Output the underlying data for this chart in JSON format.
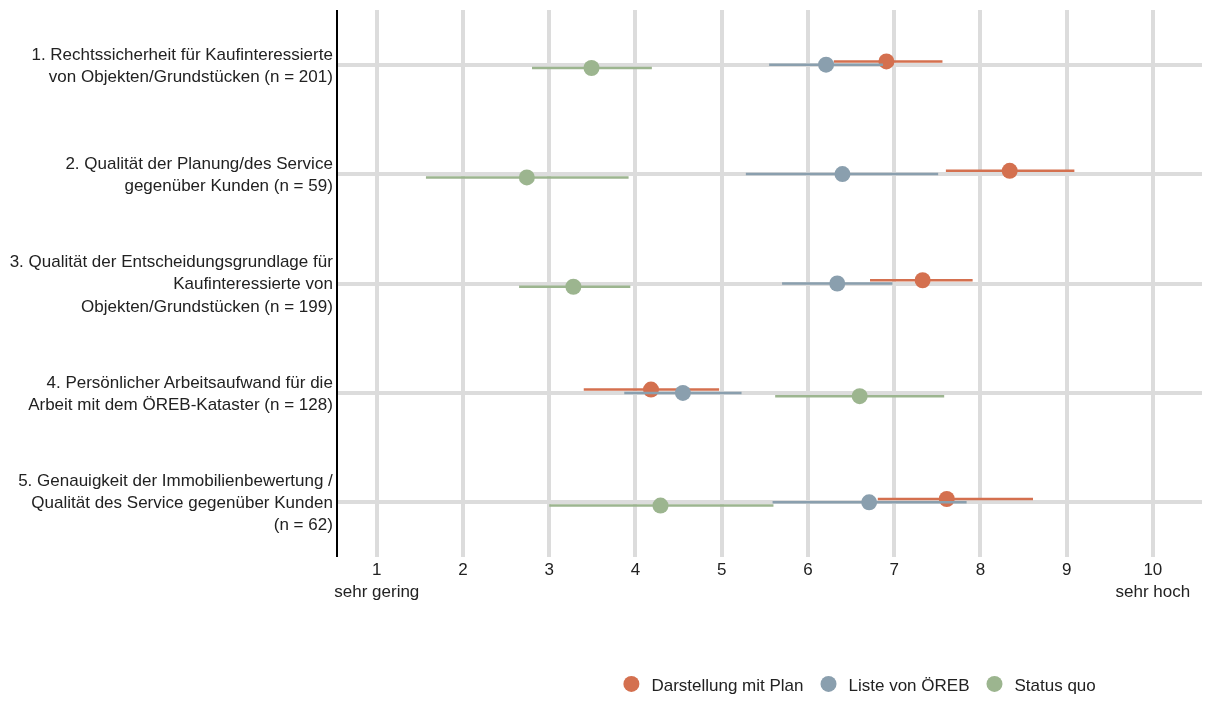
{
  "chart_data": {
    "type": "scatter",
    "orientation": "horizontal",
    "categories": [
      "1. Rechtssicherheit für Kaufinteressierte\nvon Objekten/Grundstücken (n = 201)",
      "2. Qualität der Planung/des Service\ngegenüber Kunden (n = 59)",
      "3. Qualität der Entscheidungsgrundlage für\nKaufinteressierte von\nObjekten/Grundstücken (n = 199)",
      "4. Persönlicher Arbeitsaufwand für die\nArbeit mit dem ÖREB-Kataster (n = 128)",
      "5. Genauigkeit der Immobilienbewertung /\nQualität des Service gegenüber Kunden\n(n = 62)"
    ],
    "series": [
      {
        "name": "Darstellung mit Plan",
        "color": "#d4704f",
        "values": [
          6.91,
          8.34,
          7.33,
          4.18,
          7.61
        ],
        "errors": [
          [
            6.3,
            7.56
          ],
          [
            7.6,
            9.09
          ],
          [
            6.72,
            7.91
          ],
          [
            3.4,
            4.97
          ],
          [
            6.81,
            8.61
          ]
        ]
      },
      {
        "name": "Liste von ÖREB",
        "color": "#8a9fae",
        "values": [
          6.21,
          6.4,
          6.34,
          4.55,
          6.71
        ],
        "errors": [
          [
            5.55,
            6.87
          ],
          [
            5.28,
            7.51
          ],
          [
            5.7,
            6.98
          ],
          [
            3.87,
            5.23
          ],
          [
            5.59,
            7.84
          ]
        ]
      },
      {
        "name": "Status quo",
        "color": "#9cb58f",
        "values": [
          3.49,
          2.74,
          3.28,
          6.6,
          4.29
        ],
        "errors": [
          [
            2.8,
            4.19
          ],
          [
            1.57,
            3.92
          ],
          [
            2.65,
            3.94
          ],
          [
            5.62,
            7.58
          ],
          [
            3.0,
            5.6
          ]
        ]
      }
    ],
    "xlim": [
      0.55,
      10.57
    ],
    "xticks": [
      {
        "value": 1,
        "label": "1\nsehr gering"
      },
      2,
      3,
      4,
      5,
      6,
      7,
      8,
      9,
      {
        "value": 10,
        "label": "10\nsehr hoch"
      }
    ],
    "grid": true,
    "legend": "bottom",
    "marker": "circle"
  }
}
